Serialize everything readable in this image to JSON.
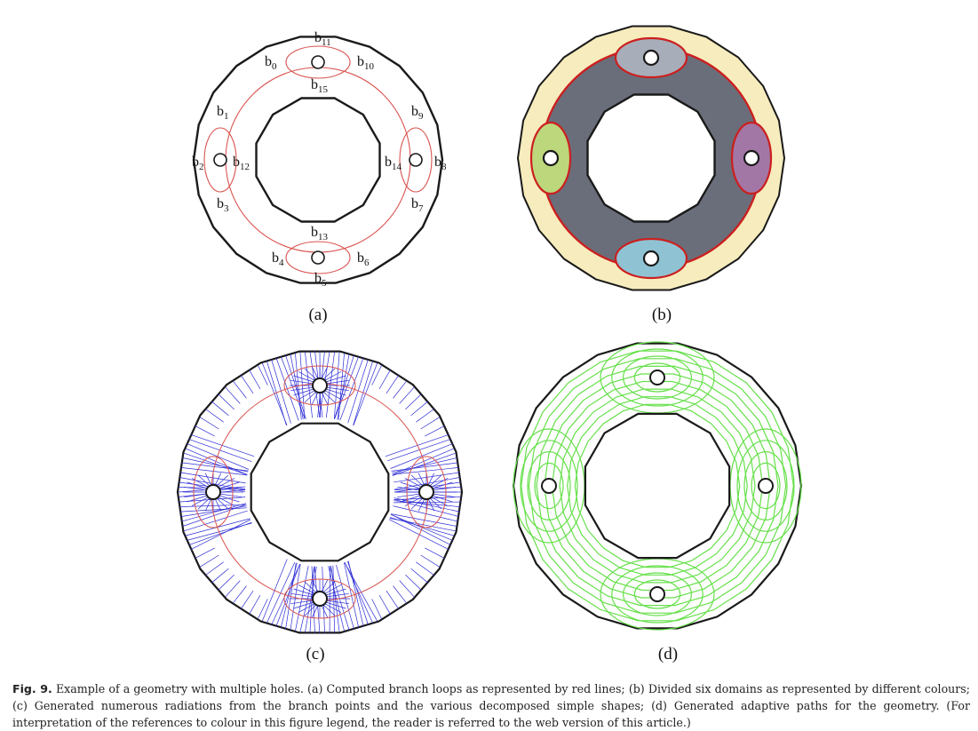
{
  "figure": {
    "panels": [
      {
        "id": "a",
        "label": "(a)",
        "branch_points": [
          {
            "base": "b",
            "sub": "0"
          },
          {
            "base": "b",
            "sub": "1"
          },
          {
            "base": "b",
            "sub": "2"
          },
          {
            "base": "b",
            "sub": "3"
          },
          {
            "base": "b",
            "sub": "4"
          },
          {
            "base": "b",
            "sub": "5"
          },
          {
            "base": "b",
            "sub": "6"
          },
          {
            "base": "b",
            "sub": "7"
          },
          {
            "base": "b",
            "sub": "8"
          },
          {
            "base": "b",
            "sub": "9"
          },
          {
            "base": "b",
            "sub": "10"
          },
          {
            "base": "b",
            "sub": "11"
          },
          {
            "base": "b",
            "sub": "12"
          },
          {
            "base": "b",
            "sub": "13"
          },
          {
            "base": "b",
            "sub": "14"
          },
          {
            "base": "b",
            "sub": "15"
          }
        ]
      },
      {
        "id": "b",
        "label": "(b)"
      },
      {
        "id": "c",
        "label": "(c)"
      },
      {
        "id": "d",
        "label": "(d)"
      }
    ],
    "colors": {
      "outline": "#1a1a1a",
      "branch_loop": "#d9534f",
      "radiation": "#2d2dd6",
      "adaptive_path": "#66e04a",
      "domain_outer": "#f6ecbd",
      "domain_inner": "#6a6e7a",
      "domain_top": "#a7adb9",
      "domain_left": "#bcd77c",
      "domain_right": "#a277a6",
      "domain_bottom": "#8fc3d4",
      "domain_border": "#cc1f1f"
    }
  },
  "caption": {
    "label": "Fig. 9.",
    "text": "Example of a geometry with multiple holes. (a) Computed branch loops as represented by red lines; (b) Divided six domains as represented by different colours; (c) Generated numerous radiations from the branch points and the various decomposed simple shapes; (d) Generated adaptive paths for the geometry. (For interpretation of the references to colour in this figure legend, the reader is referred to the web version of this article.)"
  }
}
